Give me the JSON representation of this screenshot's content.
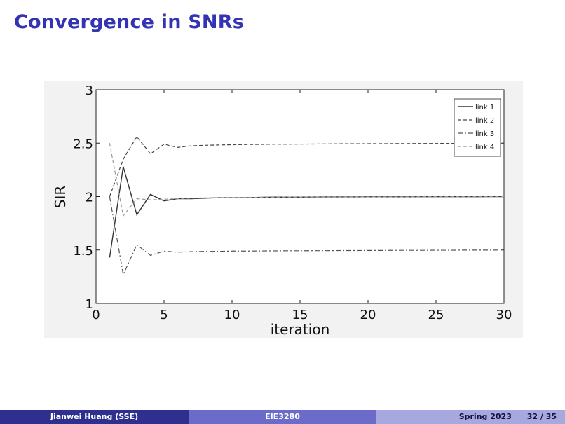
{
  "slide": {
    "title": "Convergence in SNRs"
  },
  "footer": {
    "author": "Jianwei Huang  (SSE)",
    "course": "EIE3280",
    "term": "Spring 2023",
    "page": "32 / 35"
  },
  "chart_data": {
    "type": "line",
    "xlabel": "iteration",
    "ylabel": "SIR",
    "xlim": [
      0,
      30
    ],
    "ylim": [
      1,
      3
    ],
    "xticks": [
      "0",
      "5",
      "10",
      "15",
      "20",
      "25",
      "30"
    ],
    "yticks": [
      "1",
      "1.5",
      "2",
      "2.5",
      "3"
    ],
    "grid": false,
    "legend_position": "top-right",
    "x": [
      1,
      2,
      3,
      4,
      5,
      6,
      7,
      8,
      9,
      10,
      11,
      12,
      13,
      14,
      15,
      16,
      17,
      18,
      19,
      20,
      21,
      22,
      23,
      24,
      25,
      26,
      27,
      28,
      29,
      30
    ],
    "series": [
      {
        "name": "link 1",
        "style": "solid",
        "color": "#333333",
        "values": [
          1.43,
          2.28,
          1.83,
          2.02,
          1.96,
          1.98,
          1.98,
          1.985,
          1.99,
          1.99,
          1.99,
          1.993,
          1.995,
          1.995,
          1.995,
          1.996,
          1.997,
          1.997,
          1.997,
          1.998,
          1.998,
          1.998,
          1.998,
          1.999,
          1.999,
          1.999,
          1.999,
          1.999,
          2.0,
          2.0
        ]
      },
      {
        "name": "link 2",
        "style": "dashed",
        "color": "#444444",
        "values": [
          2.0,
          2.35,
          2.56,
          2.4,
          2.49,
          2.46,
          2.475,
          2.48,
          2.483,
          2.485,
          2.487,
          2.488,
          2.49,
          2.49,
          2.491,
          2.492,
          2.493,
          2.494,
          2.494,
          2.495,
          2.495,
          2.496,
          2.496,
          2.497,
          2.497,
          2.498,
          2.498,
          2.499,
          2.499,
          2.5
        ]
      },
      {
        "name": "link 3",
        "style": "dashdot",
        "color": "#555555",
        "values": [
          2.0,
          1.27,
          1.55,
          1.45,
          1.49,
          1.48,
          1.485,
          1.487,
          1.488,
          1.49,
          1.49,
          1.491,
          1.492,
          1.493,
          1.493,
          1.494,
          1.494,
          1.495,
          1.495,
          1.496,
          1.496,
          1.497,
          1.497,
          1.497,
          1.498,
          1.498,
          1.499,
          1.499,
          1.499,
          1.5
        ]
      },
      {
        "name": "link 4",
        "style": "dashed",
        "color": "#999999",
        "values": [
          2.5,
          1.82,
          1.98,
          1.97,
          1.975,
          1.98,
          1.985,
          1.988,
          1.99,
          1.99,
          1.992,
          1.993,
          1.994,
          1.995,
          1.995,
          1.996,
          1.996,
          1.997,
          1.997,
          1.997,
          1.998,
          1.998,
          1.998,
          1.999,
          1.999,
          1.999,
          1.999,
          2.0,
          2.0,
          2.0
        ]
      }
    ]
  }
}
